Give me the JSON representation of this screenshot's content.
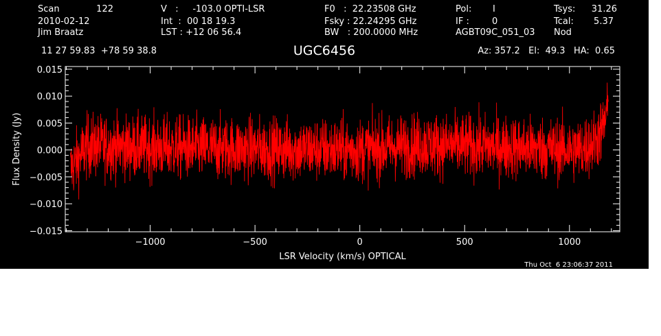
{
  "header": {
    "col1": [
      "Scan",
      "2010-02-12",
      "Jim Braatz"
    ],
    "scan_number": "122",
    "col2": [
      "V   :     -103.0 OPTI-LSR",
      "Int  :  00 18 19.3",
      "LST : +12 06 56.4"
    ],
    "col3": [
      "F0   :  22.23508 GHz",
      "Fsky : 22.24295 GHz",
      "BW   : 200.0000 MHz"
    ],
    "col4": [
      "Pol:",
      "IF :",
      "AGBT09C_051_03"
    ],
    "col4_values": [
      "I",
      "0"
    ],
    "col5": [
      "Tsys:",
      "Tcal:",
      "Nod"
    ],
    "col5_values": [
      "31.26",
      "5.37"
    ],
    "coords": "11 27 59.83  +78 59 38.8",
    "source": "UGC6456",
    "pointing": "Az: 357.2   El:  49.3   HA:  0.65",
    "timestamp": "Thu Oct  6 23:06:37 2011"
  },
  "chart_data": {
    "type": "line",
    "xlabel": "LSR Velocity (km/s) OPTICAL",
    "ylabel": "Flux Density (Jy)",
    "xlim": [
      -1405,
      1240
    ],
    "ylim": [
      -0.0152,
      0.0155
    ],
    "x_ticks": [
      -1000,
      -500,
      0,
      500,
      1000
    ],
    "x_tick_labels": [
      "−1000",
      "−500",
      "0",
      "500",
      "1000"
    ],
    "y_ticks": [
      0.015,
      0.01,
      0.005,
      0.0,
      -0.005,
      -0.01,
      -0.015
    ],
    "y_tick_labels": [
      "0.015",
      "0.010",
      "0.005",
      "0.000",
      "−0.005",
      "−0.010",
      "−0.015"
    ],
    "grid": false,
    "colors": {
      "background": "#000000",
      "axes": "#ffffff",
      "line": "#ff0000"
    },
    "series": [
      {
        "x_start": -1380,
        "x_end": 1185,
        "n_points": 2600,
        "baseline": [
          [
            -1380,
            -0.0035
          ],
          [
            -1340,
            -0.0015
          ],
          [
            -1300,
            0.0008
          ],
          [
            -1100,
            0.0005
          ],
          [
            -700,
            0.0003
          ],
          [
            0,
            0.0
          ],
          [
            300,
            0.001
          ],
          [
            700,
            0.0005
          ],
          [
            1050,
            0.0
          ],
          [
            1120,
            0.0015
          ],
          [
            1160,
            0.004
          ],
          [
            1185,
            0.008
          ]
        ],
        "rms": 0.0029,
        "y_max": 0.0125,
        "y_min": -0.0125
      }
    ]
  }
}
